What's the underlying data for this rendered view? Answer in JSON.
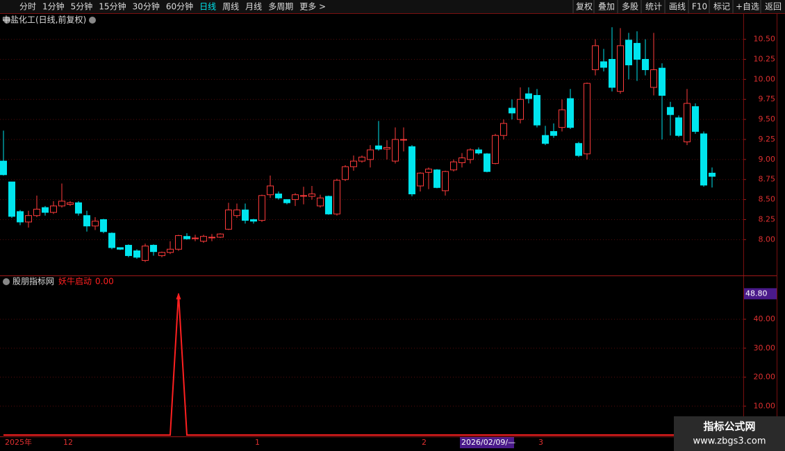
{
  "toolbar": {
    "left": [
      "分时",
      "1分钟",
      "5分钟",
      "15分钟",
      "30分钟",
      "60分钟",
      "日线",
      "周线",
      "月线",
      "多周期",
      "更多 >"
    ],
    "active": "日线",
    "right": [
      "复权",
      "叠加",
      "多股",
      "统计",
      "画线",
      "F10",
      "标记",
      "+自选",
      "返回"
    ]
  },
  "watermark": {
    "title": "指标公式网",
    "url": "www.zbgs3.com"
  },
  "cursor_date": "2026/02/09/—",
  "chart_data": [
    {
      "type": "candlestick",
      "title": "中盐化工(日线,前复权)",
      "up_color": "#ff3b3b",
      "down_color": "#00e5ee",
      "grid": true,
      "categories": [
        "2025年",
        null,
        null,
        null,
        null,
        null,
        null,
        "12",
        null,
        null,
        null,
        null,
        null,
        null,
        null,
        null,
        null,
        null,
        null,
        null,
        null,
        null,
        null,
        null,
        null,
        null,
        null,
        null,
        null,
        null,
        "1",
        null,
        null,
        null,
        null,
        null,
        null,
        null,
        null,
        null,
        null,
        null,
        null,
        null,
        null,
        null,
        null,
        null,
        null,
        null,
        "2",
        null,
        null,
        null,
        null,
        null,
        null,
        null,
        null,
        null,
        null,
        null,
        null,
        null,
        "3",
        null,
        null,
        null,
        null,
        null,
        null,
        null,
        null,
        null,
        null,
        null,
        null,
        null,
        null,
        null,
        null,
        null,
        null,
        null,
        null,
        null
      ],
      "open": [
        8.98,
        8.72,
        8.35,
        8.22,
        8.3,
        8.4,
        8.34,
        8.42,
        8.44,
        8.46,
        8.3,
        8.17,
        8.25,
        8.08,
        7.9,
        7.93,
        7.86,
        7.74,
        7.93,
        7.8,
        7.84,
        7.88,
        8.04,
        8.02,
        7.98,
        8.03,
        8.03,
        8.13,
        8.3,
        8.37,
        8.25,
        8.24,
        8.56,
        8.57,
        8.5,
        8.5,
        8.55,
        8.54,
        8.42,
        8.54,
        8.32,
        8.75,
        8.91,
        8.98,
        9.0,
        9.17,
        9.13,
        8.98,
        9.25,
        9.16,
        8.67,
        8.84,
        8.87,
        8.61,
        8.87,
        8.96,
        9.0,
        9.12,
        9.07,
        8.95,
        9.3,
        9.64,
        9.5,
        9.82,
        9.8,
        9.3,
        9.35,
        9.4,
        9.76,
        9.2,
        9.07,
        10.12,
        10.22,
        10.25,
        9.85,
        10.49,
        10.45,
        10.25,
        9.9,
        10.14,
        9.65,
        9.52,
        9.22,
        9.66,
        9.32,
        8.83
      ],
      "high": [
        9.36,
        8.72,
        8.37,
        8.36,
        8.55,
        8.42,
        8.48,
        8.7,
        8.48,
        8.48,
        8.36,
        8.28,
        8.26,
        8.09,
        7.9,
        7.94,
        7.88,
        7.95,
        7.94,
        7.85,
        7.98,
        8.06,
        8.08,
        8.06,
        8.06,
        8.07,
        8.08,
        8.46,
        8.45,
        8.45,
        8.26,
        8.56,
        8.8,
        8.6,
        8.5,
        8.58,
        8.66,
        8.67,
        8.56,
        8.55,
        8.76,
        8.93,
        9.05,
        9.05,
        9.18,
        9.48,
        9.24,
        9.4,
        9.4,
        9.18,
        8.84,
        8.9,
        8.88,
        8.86,
        9.0,
        9.08,
        9.14,
        9.15,
        9.08,
        9.32,
        9.5,
        9.75,
        9.9,
        9.9,
        9.88,
        9.42,
        9.45,
        9.75,
        9.88,
        9.22,
        9.96,
        10.5,
        10.38,
        10.65,
        10.64,
        10.58,
        10.6,
        10.5,
        10.58,
        10.2,
        9.72,
        9.55,
        9.88,
        9.7,
        9.35,
        8.9
      ],
      "low": [
        8.8,
        8.27,
        8.18,
        8.15,
        8.28,
        8.3,
        8.32,
        8.4,
        8.42,
        8.3,
        8.1,
        8.12,
        8.08,
        7.88,
        7.87,
        7.78,
        7.76,
        7.72,
        7.8,
        7.78,
        7.82,
        7.86,
        8.0,
        7.98,
        7.96,
        7.98,
        8.02,
        8.12,
        8.27,
        8.2,
        8.2,
        8.22,
        8.52,
        8.5,
        8.44,
        8.42,
        8.44,
        8.5,
        8.4,
        8.31,
        8.3,
        8.73,
        8.86,
        8.96,
        8.9,
        9.11,
        9.0,
        8.95,
        9.1,
        8.54,
        8.6,
        8.63,
        8.64,
        8.55,
        8.85,
        8.9,
        8.95,
        9.06,
        8.84,
        8.94,
        9.25,
        9.5,
        9.45,
        9.7,
        9.4,
        9.18,
        9.27,
        9.35,
        9.38,
        9.03,
        9.0,
        10.05,
        10.1,
        9.85,
        9.82,
        10.0,
        9.98,
        10.05,
        9.8,
        9.25,
        9.3,
        9.28,
        9.18,
        9.32,
        8.66,
        8.65
      ],
      "close": [
        8.81,
        8.29,
        8.22,
        8.3,
        8.38,
        8.34,
        8.42,
        8.48,
        8.46,
        8.33,
        8.17,
        8.23,
        8.1,
        7.9,
        7.88,
        7.8,
        7.78,
        7.92,
        7.85,
        7.84,
        7.88,
        8.05,
        8.01,
        8.02,
        8.04,
        8.03,
        8.07,
        8.37,
        8.37,
        8.24,
        8.23,
        8.55,
        8.67,
        8.52,
        8.46,
        8.56,
        8.55,
        8.57,
        8.52,
        8.32,
        8.74,
        8.91,
        8.98,
        9.03,
        9.12,
        9.13,
        9.15,
        9.25,
        9.25,
        8.57,
        8.83,
        8.88,
        8.65,
        8.85,
        8.97,
        9.02,
        9.12,
        9.08,
        8.85,
        9.3,
        9.45,
        9.58,
        9.75,
        9.76,
        9.43,
        9.2,
        9.3,
        9.62,
        9.4,
        9.05,
        9.95,
        10.42,
        10.15,
        9.9,
        10.42,
        10.18,
        10.25,
        10.12,
        10.12,
        9.8,
        9.56,
        9.3,
        9.7,
        9.35,
        8.68,
        8.79
      ],
      "ylim": [
        7.57,
        10.67
      ],
      "yticks": [
        {
          "value": 8,
          "label": "8.00"
        },
        {
          "value": 8.25,
          "label": "8.25"
        },
        {
          "value": 8.5,
          "label": "8.50"
        },
        {
          "value": 8.75,
          "label": "8.75"
        },
        {
          "value": 9,
          "label": "9.00"
        },
        {
          "value": 9.25,
          "label": "9.25"
        },
        {
          "value": 9.5,
          "label": "9.50"
        },
        {
          "value": 9.75,
          "label": "9.75"
        },
        {
          "value": 10,
          "label": "10.00"
        },
        {
          "value": 10.25,
          "label": "10.25"
        },
        {
          "value": 10.5,
          "label": "10.50"
        }
      ]
    },
    {
      "type": "line",
      "title": "股朋指标网",
      "grid": true,
      "series": [
        {
          "name": "妖牛启动",
          "color": "#ff2020",
          "current_label": "0.00",
          "values": [
            0,
            0,
            0,
            0,
            0,
            0,
            0,
            0,
            0,
            0,
            0,
            0,
            0,
            0,
            0,
            0,
            0,
            0,
            0,
            0,
            0,
            48.8,
            0,
            0,
            0,
            0,
            0,
            0,
            0,
            0,
            0,
            0,
            0,
            0,
            0,
            0,
            0,
            0,
            0,
            0,
            0,
            0,
            0,
            0,
            0,
            0,
            0,
            0,
            0,
            0,
            0,
            0,
            0,
            0,
            0,
            0,
            0,
            0,
            0,
            0,
            0,
            0,
            0,
            0,
            0,
            0,
            0,
            0,
            0,
            0,
            0,
            0,
            0,
            0,
            0,
            0,
            0,
            0,
            0,
            0,
            0,
            0,
            0,
            0,
            0,
            0
          ]
        }
      ],
      "highlight": {
        "value": 48.8,
        "label": "48.80"
      },
      "ylim": [
        0,
        54.4
      ],
      "yticks": [
        {
          "value": 10,
          "label": "10.00"
        },
        {
          "value": 20,
          "label": "20.00"
        },
        {
          "value": 30,
          "label": "30.00"
        },
        {
          "value": 40,
          "label": "40.00"
        }
      ]
    }
  ]
}
